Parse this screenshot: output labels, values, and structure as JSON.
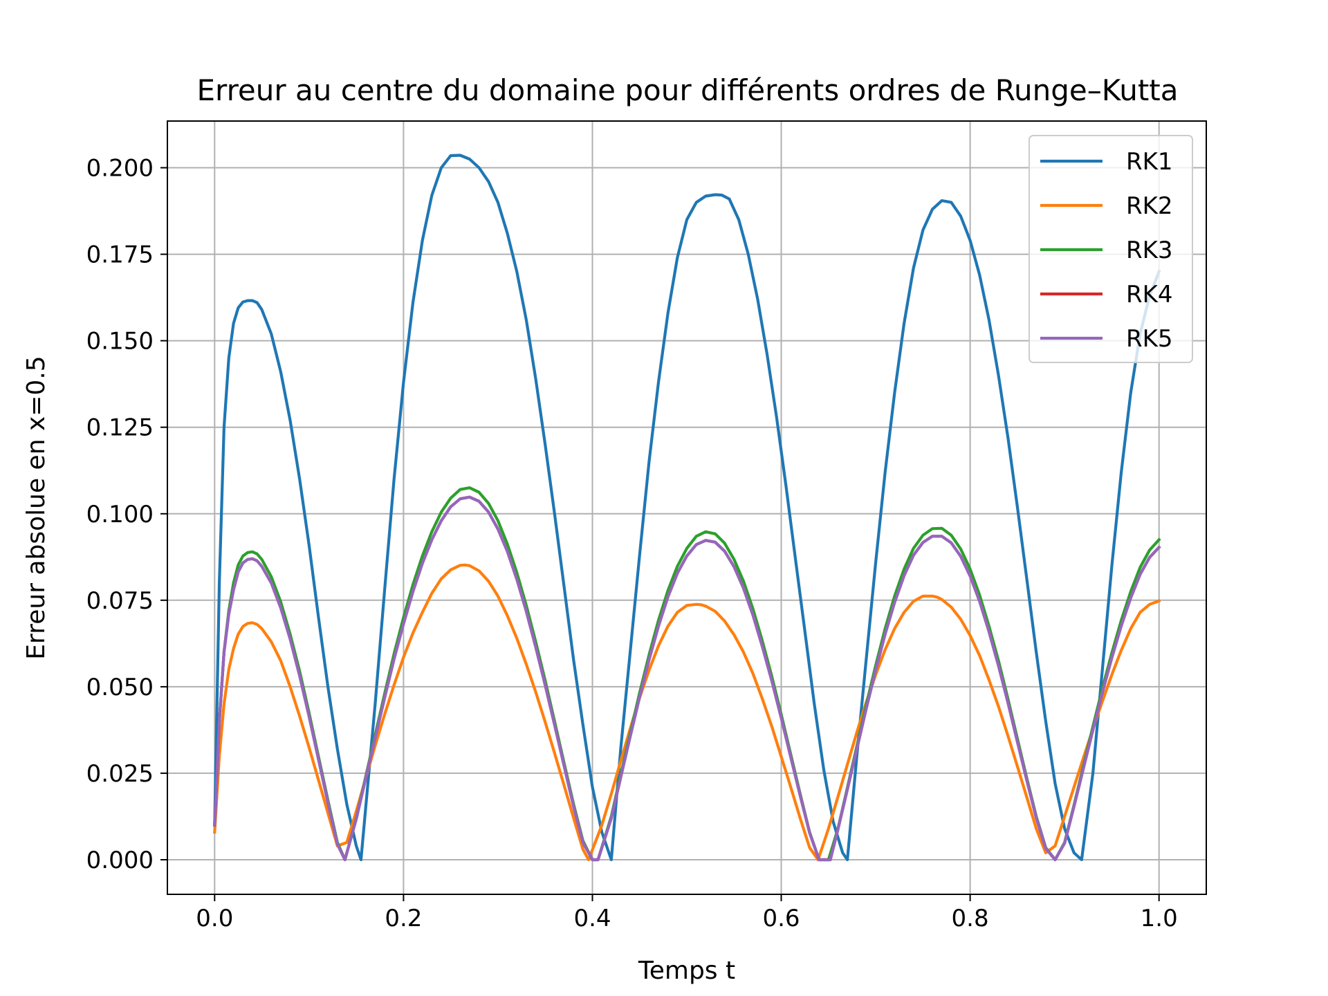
{
  "chart_data": {
    "type": "line",
    "title": "Erreur au centre du domaine pour différents ordres de Runge–Kutta",
    "xlabel": "Temps t",
    "ylabel": "Erreur absolue en x=0.5",
    "xlim": [
      -0.05,
      1.05
    ],
    "ylim": [
      -0.01,
      0.2135
    ],
    "xticks": [
      0.0,
      0.2,
      0.4,
      0.6,
      0.8,
      1.0
    ],
    "xtick_labels": [
      "0.0",
      "0.2",
      "0.4",
      "0.6",
      "0.8",
      "1.0"
    ],
    "yticks": [
      0.0,
      0.025,
      0.05,
      0.075,
      0.1,
      0.125,
      0.15,
      0.175,
      0.2
    ],
    "ytick_labels": [
      "0.000",
      "0.025",
      "0.050",
      "0.075",
      "0.100",
      "0.125",
      "0.150",
      "0.175",
      "0.200"
    ],
    "grid": true,
    "legend_position": "top-right",
    "series": [
      {
        "name": "RK1",
        "color": "#1f77b4",
        "x": [
          0.0,
          0.005,
          0.01,
          0.015,
          0.02,
          0.025,
          0.03,
          0.035,
          0.04,
          0.045,
          0.05,
          0.06,
          0.07,
          0.08,
          0.09,
          0.1,
          0.11,
          0.12,
          0.13,
          0.14,
          0.15,
          0.155,
          0.16,
          0.17,
          0.18,
          0.19,
          0.2,
          0.21,
          0.22,
          0.23,
          0.24,
          0.25,
          0.26,
          0.27,
          0.28,
          0.285,
          0.29,
          0.3,
          0.31,
          0.32,
          0.33,
          0.34,
          0.35,
          0.36,
          0.37,
          0.38,
          0.39,
          0.4,
          0.41,
          0.42,
          0.43,
          0.44,
          0.45,
          0.46,
          0.47,
          0.48,
          0.49,
          0.5,
          0.51,
          0.52,
          0.53,
          0.537,
          0.545,
          0.555,
          0.565,
          0.575,
          0.585,
          0.595,
          0.605,
          0.615,
          0.625,
          0.635,
          0.645,
          0.655,
          0.665,
          0.67,
          0.68,
          0.69,
          0.7,
          0.71,
          0.72,
          0.73,
          0.74,
          0.75,
          0.76,
          0.77,
          0.78,
          0.79,
          0.8,
          0.81,
          0.82,
          0.83,
          0.84,
          0.85,
          0.86,
          0.87,
          0.88,
          0.89,
          0.9,
          0.91,
          0.918,
          0.93,
          0.94,
          0.95,
          0.96,
          0.97,
          0.98,
          0.99,
          1.0
        ],
        "y": [
          0.01,
          0.08,
          0.125,
          0.145,
          0.155,
          0.1595,
          0.1612,
          0.1616,
          0.1616,
          0.161,
          0.159,
          0.152,
          0.141,
          0.127,
          0.11,
          0.091,
          0.07,
          0.05,
          0.032,
          0.016,
          0.004,
          0.0,
          0.015,
          0.045,
          0.078,
          0.11,
          0.138,
          0.161,
          0.179,
          0.192,
          0.2,
          0.2035,
          0.2036,
          0.2025,
          0.2,
          0.198,
          0.196,
          0.19,
          0.181,
          0.17,
          0.156,
          0.139,
          0.12,
          0.1,
          0.079,
          0.058,
          0.039,
          0.021,
          0.008,
          0.0,
          0.032,
          0.06,
          0.088,
          0.115,
          0.138,
          0.158,
          0.174,
          0.185,
          0.19,
          0.1918,
          0.1922,
          0.1921,
          0.191,
          0.185,
          0.175,
          0.162,
          0.146,
          0.128,
          0.108,
          0.087,
          0.066,
          0.045,
          0.026,
          0.011,
          0.002,
          0.0,
          0.03,
          0.058,
          0.086,
          0.112,
          0.135,
          0.155,
          0.171,
          0.182,
          0.188,
          0.1905,
          0.19,
          0.186,
          0.179,
          0.169,
          0.156,
          0.14,
          0.122,
          0.102,
          0.081,
          0.06,
          0.04,
          0.022,
          0.009,
          0.002,
          0.0,
          0.025,
          0.055,
          0.085,
          0.112,
          0.135,
          0.152,
          0.163,
          0.17
        ]
      },
      {
        "name": "RK2",
        "color": "#ff7f0e",
        "x": [
          0.0,
          0.005,
          0.01,
          0.015,
          0.02,
          0.025,
          0.03,
          0.035,
          0.04,
          0.045,
          0.05,
          0.06,
          0.07,
          0.08,
          0.09,
          0.1,
          0.11,
          0.12,
          0.13,
          0.14,
          0.15,
          0.16,
          0.17,
          0.18,
          0.19,
          0.2,
          0.21,
          0.22,
          0.23,
          0.24,
          0.25,
          0.26,
          0.265,
          0.27,
          0.28,
          0.29,
          0.3,
          0.31,
          0.32,
          0.33,
          0.34,
          0.35,
          0.36,
          0.37,
          0.38,
          0.39,
          0.396,
          0.41,
          0.42,
          0.43,
          0.44,
          0.45,
          0.46,
          0.47,
          0.48,
          0.49,
          0.5,
          0.51,
          0.515,
          0.52,
          0.53,
          0.54,
          0.55,
          0.56,
          0.57,
          0.58,
          0.59,
          0.6,
          0.61,
          0.62,
          0.63,
          0.639,
          0.65,
          0.66,
          0.67,
          0.68,
          0.69,
          0.7,
          0.71,
          0.72,
          0.73,
          0.74,
          0.75,
          0.76,
          0.765,
          0.77,
          0.78,
          0.79,
          0.8,
          0.81,
          0.82,
          0.83,
          0.84,
          0.85,
          0.86,
          0.87,
          0.88,
          0.89,
          0.9,
          0.91,
          0.92,
          0.93,
          0.94,
          0.95,
          0.96,
          0.97,
          0.98,
          0.99,
          1.0
        ],
        "y": [
          0.008,
          0.03,
          0.045,
          0.055,
          0.061,
          0.0652,
          0.0674,
          0.0683,
          0.0685,
          0.068,
          0.0668,
          0.063,
          0.0575,
          0.05,
          0.0415,
          0.0325,
          0.023,
          0.0135,
          0.004,
          0.005,
          0.014,
          0.0235,
          0.033,
          0.042,
          0.0505,
          0.0585,
          0.0655,
          0.0715,
          0.077,
          0.0812,
          0.0838,
          0.0851,
          0.0852,
          0.085,
          0.0835,
          0.0805,
          0.0762,
          0.0705,
          0.064,
          0.0565,
          0.0485,
          0.0398,
          0.0308,
          0.0215,
          0.0122,
          0.003,
          0.0,
          0.01,
          0.019,
          0.0285,
          0.0378,
          0.0468,
          0.0548,
          0.0618,
          0.0675,
          0.0715,
          0.0735,
          0.0738,
          0.0737,
          0.0733,
          0.0718,
          0.069,
          0.065,
          0.06,
          0.0538,
          0.0465,
          0.0385,
          0.0298,
          0.021,
          0.012,
          0.0035,
          0.0,
          0.009,
          0.0182,
          0.0275,
          0.0368,
          0.0455,
          0.0535,
          0.0607,
          0.0668,
          0.0715,
          0.0747,
          0.0762,
          0.0762,
          0.0759,
          0.0752,
          0.073,
          0.0695,
          0.0648,
          0.059,
          0.052,
          0.0443,
          0.0358,
          0.027,
          0.018,
          0.009,
          0.002,
          0.004,
          0.0125,
          0.021,
          0.0295,
          0.0378,
          0.0458,
          0.0535,
          0.0605,
          0.0668,
          0.0715,
          0.0738,
          0.0748
        ]
      },
      {
        "name": "RK3",
        "color": "#2ca02c",
        "x": [
          0.0,
          0.005,
          0.01,
          0.015,
          0.02,
          0.025,
          0.03,
          0.035,
          0.04,
          0.045,
          0.05,
          0.06,
          0.07,
          0.08,
          0.09,
          0.1,
          0.11,
          0.12,
          0.13,
          0.138,
          0.15,
          0.16,
          0.17,
          0.18,
          0.19,
          0.2,
          0.21,
          0.22,
          0.23,
          0.24,
          0.25,
          0.26,
          0.27,
          0.28,
          0.29,
          0.3,
          0.31,
          0.32,
          0.33,
          0.34,
          0.35,
          0.36,
          0.37,
          0.38,
          0.39,
          0.4,
          0.406,
          0.42,
          0.43,
          0.44,
          0.45,
          0.46,
          0.47,
          0.48,
          0.49,
          0.5,
          0.51,
          0.52,
          0.53,
          0.54,
          0.55,
          0.56,
          0.57,
          0.58,
          0.59,
          0.6,
          0.61,
          0.62,
          0.63,
          0.64,
          0.65,
          0.66,
          0.67,
          0.68,
          0.69,
          0.7,
          0.71,
          0.72,
          0.73,
          0.74,
          0.75,
          0.76,
          0.77,
          0.78,
          0.79,
          0.8,
          0.81,
          0.82,
          0.83,
          0.84,
          0.85,
          0.86,
          0.87,
          0.88,
          0.89,
          0.9,
          0.91,
          0.92,
          0.93,
          0.94,
          0.95,
          0.96,
          0.97,
          0.98,
          0.99,
          1.0
        ],
        "y": [
          0.01,
          0.04,
          0.06,
          0.072,
          0.08,
          0.0852,
          0.0878,
          0.0888,
          0.089,
          0.0884,
          0.0868,
          0.0818,
          0.0745,
          0.0652,
          0.0545,
          0.0425,
          0.0298,
          0.0172,
          0.005,
          0.0,
          0.012,
          0.024,
          0.036,
          0.048,
          0.0595,
          0.07,
          0.0795,
          0.0878,
          0.0948,
          0.1005,
          0.1045,
          0.107,
          0.1075,
          0.1062,
          0.103,
          0.098,
          0.0912,
          0.083,
          0.0735,
          0.063,
          0.0518,
          0.04,
          0.028,
          0.0162,
          0.0055,
          0.0,
          0.0,
          0.0125,
          0.0245,
          0.0365,
          0.0482,
          0.0592,
          0.0692,
          0.0778,
          0.0848,
          0.09,
          0.0935,
          0.0948,
          0.0942,
          0.0915,
          0.0868,
          0.0805,
          0.0725,
          0.0632,
          0.053,
          0.042,
          0.0305,
          0.019,
          0.008,
          0.0,
          0.0,
          0.009,
          0.0208,
          0.0328,
          0.0448,
          0.0562,
          0.0668,
          0.0762,
          0.084,
          0.09,
          0.0938,
          0.0957,
          0.0958,
          0.0938,
          0.0898,
          0.084,
          0.0765,
          0.0675,
          0.0575,
          0.0465,
          0.035,
          0.0235,
          0.0125,
          0.0035,
          0.0,
          0.005,
          0.0158,
          0.0272,
          0.0385,
          0.0495,
          0.0598,
          0.0692,
          0.0775,
          0.0845,
          0.0895,
          0.0925
        ]
      },
      {
        "name": "RK4",
        "color": "#d62728",
        "x": [
          0.0,
          0.005,
          0.01,
          0.015,
          0.02,
          0.025,
          0.03,
          0.035,
          0.04,
          0.045,
          0.05,
          0.06,
          0.07,
          0.08,
          0.09,
          0.1,
          0.11,
          0.12,
          0.13,
          0.138,
          0.15,
          0.16,
          0.17,
          0.18,
          0.19,
          0.2,
          0.21,
          0.22,
          0.23,
          0.24,
          0.25,
          0.26,
          0.27,
          0.28,
          0.29,
          0.3,
          0.31,
          0.32,
          0.33,
          0.34,
          0.35,
          0.36,
          0.37,
          0.38,
          0.39,
          0.4,
          0.406,
          0.42,
          0.43,
          0.44,
          0.45,
          0.46,
          0.47,
          0.48,
          0.49,
          0.5,
          0.51,
          0.52,
          0.53,
          0.54,
          0.55,
          0.56,
          0.57,
          0.58,
          0.59,
          0.6,
          0.61,
          0.62,
          0.63,
          0.64,
          0.652,
          0.66,
          0.67,
          0.68,
          0.69,
          0.7,
          0.71,
          0.72,
          0.73,
          0.74,
          0.75,
          0.76,
          0.77,
          0.78,
          0.79,
          0.8,
          0.81,
          0.82,
          0.83,
          0.84,
          0.85,
          0.86,
          0.87,
          0.88,
          0.89,
          0.9,
          0.91,
          0.92,
          0.93,
          0.94,
          0.95,
          0.96,
          0.97,
          0.98,
          0.99,
          1.0
        ],
        "y": [
          0.01,
          0.04,
          0.06,
          0.071,
          0.078,
          0.0832,
          0.0858,
          0.0868,
          0.087,
          0.0864,
          0.0848,
          0.08,
          0.0728,
          0.0638,
          0.0532,
          0.0415,
          0.029,
          0.0165,
          0.0045,
          0.0,
          0.0118,
          0.0235,
          0.0352,
          0.0468,
          0.058,
          0.0682,
          0.0775,
          0.0857,
          0.0925,
          0.098,
          0.102,
          0.1043,
          0.1048,
          0.1036,
          0.1005,
          0.0956,
          0.0891,
          0.0811,
          0.0718,
          0.0615,
          0.0505,
          0.039,
          0.0272,
          0.0155,
          0.005,
          0.0,
          0.0,
          0.012,
          0.0238,
          0.0356,
          0.047,
          0.0578,
          0.0675,
          0.076,
          0.0828,
          0.0878,
          0.0911,
          0.0923,
          0.0918,
          0.0892,
          0.0847,
          0.0785,
          0.0707,
          0.0616,
          0.0517,
          0.041,
          0.0297,
          0.0185,
          0.0078,
          0.0,
          0.0,
          0.0088,
          0.0203,
          0.032,
          0.0437,
          0.0549,
          0.0652,
          0.0744,
          0.0821,
          0.088,
          0.0917,
          0.0935,
          0.0935,
          0.0916,
          0.0877,
          0.082,
          0.0747,
          0.0659,
          0.0561,
          0.0454,
          0.0341,
          0.0229,
          0.0121,
          0.0033,
          0.0,
          0.0048,
          0.0154,
          0.0265,
          0.0375,
          0.0483,
          0.0584,
          0.0676,
          0.0757,
          0.0825,
          0.0874,
          0.0903
        ]
      },
      {
        "name": "RK5",
        "color": "#9467bd",
        "x": [
          0.0,
          0.005,
          0.01,
          0.015,
          0.02,
          0.025,
          0.03,
          0.035,
          0.04,
          0.045,
          0.05,
          0.06,
          0.07,
          0.08,
          0.09,
          0.1,
          0.11,
          0.12,
          0.13,
          0.138,
          0.15,
          0.16,
          0.17,
          0.18,
          0.19,
          0.2,
          0.21,
          0.22,
          0.23,
          0.24,
          0.25,
          0.26,
          0.27,
          0.28,
          0.29,
          0.3,
          0.31,
          0.32,
          0.33,
          0.34,
          0.35,
          0.36,
          0.37,
          0.38,
          0.39,
          0.4,
          0.406,
          0.42,
          0.43,
          0.44,
          0.45,
          0.46,
          0.47,
          0.48,
          0.49,
          0.5,
          0.51,
          0.52,
          0.53,
          0.54,
          0.55,
          0.56,
          0.57,
          0.58,
          0.59,
          0.6,
          0.61,
          0.62,
          0.63,
          0.64,
          0.652,
          0.66,
          0.67,
          0.68,
          0.69,
          0.7,
          0.71,
          0.72,
          0.73,
          0.74,
          0.75,
          0.76,
          0.77,
          0.78,
          0.79,
          0.8,
          0.81,
          0.82,
          0.83,
          0.84,
          0.85,
          0.86,
          0.87,
          0.88,
          0.89,
          0.9,
          0.91,
          0.92,
          0.93,
          0.94,
          0.95,
          0.96,
          0.97,
          0.98,
          0.99,
          1.0
        ],
        "y": [
          0.01,
          0.04,
          0.06,
          0.071,
          0.078,
          0.0832,
          0.0858,
          0.0868,
          0.087,
          0.0864,
          0.0848,
          0.08,
          0.0728,
          0.0638,
          0.0532,
          0.0415,
          0.029,
          0.0165,
          0.0045,
          0.0,
          0.0118,
          0.0235,
          0.0352,
          0.0468,
          0.058,
          0.0682,
          0.0775,
          0.0857,
          0.0925,
          0.098,
          0.102,
          0.1043,
          0.1048,
          0.1036,
          0.1005,
          0.0956,
          0.0891,
          0.0811,
          0.0718,
          0.0615,
          0.0505,
          0.039,
          0.0272,
          0.0155,
          0.005,
          0.0,
          0.0,
          0.012,
          0.0238,
          0.0356,
          0.047,
          0.0578,
          0.0675,
          0.076,
          0.0828,
          0.0878,
          0.0911,
          0.0923,
          0.0918,
          0.0892,
          0.0847,
          0.0785,
          0.0707,
          0.0616,
          0.0517,
          0.041,
          0.0297,
          0.0185,
          0.0078,
          0.0,
          0.0,
          0.0088,
          0.0203,
          0.032,
          0.0437,
          0.0549,
          0.0652,
          0.0744,
          0.0821,
          0.088,
          0.0917,
          0.0935,
          0.0935,
          0.0916,
          0.0877,
          0.082,
          0.0747,
          0.0659,
          0.0561,
          0.0454,
          0.0341,
          0.0229,
          0.0121,
          0.0033,
          0.0,
          0.0048,
          0.0154,
          0.0265,
          0.0375,
          0.0483,
          0.0584,
          0.0676,
          0.0757,
          0.0825,
          0.0874,
          0.0903
        ]
      }
    ]
  }
}
